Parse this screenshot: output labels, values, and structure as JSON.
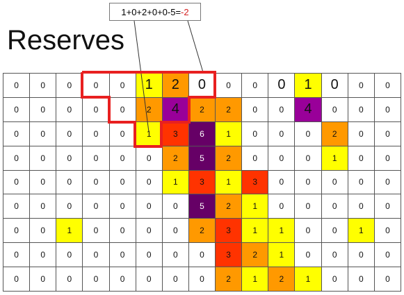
{
  "title": "Reserves",
  "callout": {
    "expression": "1+0+2+0+0-5=",
    "result": "-2"
  },
  "colors": {
    "0": "#ffffff",
    "1": "#ffff00",
    "2": "#ff9900",
    "3": "#ff3300",
    "4": "#990099",
    "5": "#660066",
    "6": "#660066",
    "highlight": "#e82020"
  },
  "grid": [
    [
      {
        "v": "0",
        "c": "0"
      },
      {
        "v": "0",
        "c": "0"
      },
      {
        "v": "0",
        "c": "0"
      },
      {
        "v": "0",
        "c": "0"
      },
      {
        "v": "0",
        "c": "0"
      },
      {
        "v": "1",
        "c": "1",
        "big": true
      },
      {
        "v": "2",
        "c": "2",
        "big": true
      },
      {
        "v": "0",
        "c": "0",
        "big": true
      },
      {
        "v": "0",
        "c": "0"
      },
      {
        "v": "0",
        "c": "0"
      },
      {
        "v": "0",
        "c": "0",
        "big": true
      },
      {
        "v": "1",
        "c": "1",
        "big": true
      },
      {
        "v": "0",
        "c": "0",
        "big": true
      },
      {
        "v": "0",
        "c": "0"
      },
      {
        "v": "0",
        "c": "0"
      }
    ],
    [
      {
        "v": "0",
        "c": "0"
      },
      {
        "v": "0",
        "c": "0"
      },
      {
        "v": "0",
        "c": "0"
      },
      {
        "v": "0",
        "c": "0"
      },
      {
        "v": "0",
        "c": "0"
      },
      {
        "v": "2",
        "c": "2"
      },
      {
        "v": "4",
        "c": "4",
        "big": true
      },
      {
        "v": "2",
        "c": "2"
      },
      {
        "v": "2",
        "c": "2"
      },
      {
        "v": "0",
        "c": "0"
      },
      {
        "v": "0",
        "c": "0"
      },
      {
        "v": "4",
        "c": "4",
        "big": true
      },
      {
        "v": "0",
        "c": "0"
      },
      {
        "v": "0",
        "c": "0"
      },
      {
        "v": "0",
        "c": "0"
      }
    ],
    [
      {
        "v": "0",
        "c": "0"
      },
      {
        "v": "0",
        "c": "0"
      },
      {
        "v": "0",
        "c": "0"
      },
      {
        "v": "0",
        "c": "0"
      },
      {
        "v": "0",
        "c": "0"
      },
      {
        "v": "1",
        "c": "1"
      },
      {
        "v": "3",
        "c": "3"
      },
      {
        "v": "6",
        "c": "6",
        "light": true
      },
      {
        "v": "1",
        "c": "1"
      },
      {
        "v": "0",
        "c": "0"
      },
      {
        "v": "0",
        "c": "0"
      },
      {
        "v": "0",
        "c": "0"
      },
      {
        "v": "2",
        "c": "2"
      },
      {
        "v": "0",
        "c": "0"
      },
      {
        "v": "0",
        "c": "0"
      }
    ],
    [
      {
        "v": "0",
        "c": "0"
      },
      {
        "v": "0",
        "c": "0"
      },
      {
        "v": "0",
        "c": "0"
      },
      {
        "v": "0",
        "c": "0"
      },
      {
        "v": "0",
        "c": "0"
      },
      {
        "v": "0",
        "c": "0"
      },
      {
        "v": "2",
        "c": "2"
      },
      {
        "v": "5",
        "c": "5",
        "light": true
      },
      {
        "v": "2",
        "c": "2"
      },
      {
        "v": "0",
        "c": "0"
      },
      {
        "v": "0",
        "c": "0"
      },
      {
        "v": "0",
        "c": "0"
      },
      {
        "v": "1",
        "c": "1"
      },
      {
        "v": "0",
        "c": "0"
      },
      {
        "v": "0",
        "c": "0"
      }
    ],
    [
      {
        "v": "0",
        "c": "0"
      },
      {
        "v": "0",
        "c": "0"
      },
      {
        "v": "0",
        "c": "0"
      },
      {
        "v": "0",
        "c": "0"
      },
      {
        "v": "0",
        "c": "0"
      },
      {
        "v": "0",
        "c": "0"
      },
      {
        "v": "1",
        "c": "1"
      },
      {
        "v": "3",
        "c": "3"
      },
      {
        "v": "1",
        "c": "1"
      },
      {
        "v": "3",
        "c": "3"
      },
      {
        "v": "0",
        "c": "0"
      },
      {
        "v": "0",
        "c": "0"
      },
      {
        "v": "0",
        "c": "0"
      },
      {
        "v": "0",
        "c": "0"
      },
      {
        "v": "0",
        "c": "0"
      }
    ],
    [
      {
        "v": "0",
        "c": "0"
      },
      {
        "v": "0",
        "c": "0"
      },
      {
        "v": "0",
        "c": "0"
      },
      {
        "v": "0",
        "c": "0"
      },
      {
        "v": "0",
        "c": "0"
      },
      {
        "v": "0",
        "c": "0"
      },
      {
        "v": "0",
        "c": "0"
      },
      {
        "v": "5",
        "c": "5",
        "light": true
      },
      {
        "v": "2",
        "c": "2"
      },
      {
        "v": "1",
        "c": "1"
      },
      {
        "v": "0",
        "c": "0"
      },
      {
        "v": "0",
        "c": "0"
      },
      {
        "v": "0",
        "c": "0"
      },
      {
        "v": "0",
        "c": "0"
      },
      {
        "v": "0",
        "c": "0"
      }
    ],
    [
      {
        "v": "0",
        "c": "0"
      },
      {
        "v": "0",
        "c": "0"
      },
      {
        "v": "1",
        "c": "1"
      },
      {
        "v": "0",
        "c": "0"
      },
      {
        "v": "0",
        "c": "0"
      },
      {
        "v": "0",
        "c": "0"
      },
      {
        "v": "0",
        "c": "0"
      },
      {
        "v": "2",
        "c": "2"
      },
      {
        "v": "3",
        "c": "3"
      },
      {
        "v": "1",
        "c": "1"
      },
      {
        "v": "1",
        "c": "1"
      },
      {
        "v": "0",
        "c": "0"
      },
      {
        "v": "0",
        "c": "0"
      },
      {
        "v": "1",
        "c": "1"
      },
      {
        "v": "0",
        "c": "0"
      }
    ],
    [
      {
        "v": "0",
        "c": "0"
      },
      {
        "v": "0",
        "c": "0"
      },
      {
        "v": "0",
        "c": "0"
      },
      {
        "v": "0",
        "c": "0"
      },
      {
        "v": "0",
        "c": "0"
      },
      {
        "v": "0",
        "c": "0"
      },
      {
        "v": "0",
        "c": "0"
      },
      {
        "v": "0",
        "c": "0"
      },
      {
        "v": "3",
        "c": "3"
      },
      {
        "v": "2",
        "c": "2"
      },
      {
        "v": "1",
        "c": "1"
      },
      {
        "v": "0",
        "c": "0"
      },
      {
        "v": "0",
        "c": "0"
      },
      {
        "v": "0",
        "c": "0"
      },
      {
        "v": "0",
        "c": "0"
      }
    ],
    [
      {
        "v": "0",
        "c": "0"
      },
      {
        "v": "0",
        "c": "0"
      },
      {
        "v": "0",
        "c": "0"
      },
      {
        "v": "0",
        "c": "0"
      },
      {
        "v": "0",
        "c": "0"
      },
      {
        "v": "0",
        "c": "0"
      },
      {
        "v": "0",
        "c": "0"
      },
      {
        "v": "0",
        "c": "0"
      },
      {
        "v": "2",
        "c": "2"
      },
      {
        "v": "1",
        "c": "1"
      },
      {
        "v": "2",
        "c": "2"
      },
      {
        "v": "1",
        "c": "1"
      },
      {
        "v": "0",
        "c": "0"
      },
      {
        "v": "0",
        "c": "0"
      },
      {
        "v": "0",
        "c": "0"
      }
    ]
  ]
}
